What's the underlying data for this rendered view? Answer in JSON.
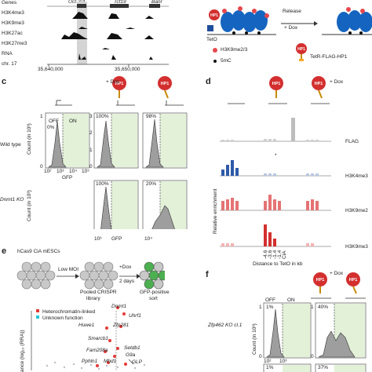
{
  "panel_a": {
    "track_labels": [
      "Genes",
      "H3K4me3",
      "H3K9me3",
      "H3K27ac",
      "H3K27me3",
      "RNA",
      "chr. 17"
    ],
    "gene_oct": "Oct-3/4",
    "gene_tcf": "Tcf19",
    "gene_partial": "Banr",
    "coord_left": "35,640,000",
    "coord_right": "35,650,000"
  },
  "panel_b": {
    "release": "Release",
    "dox": "+ Dox",
    "teto": "TetO",
    "legend_k9": "H3K9me2/3",
    "legend_5mc": "5mC",
    "legend_hp1_label": "TetR-FLAG-HP1",
    "hp1": "HP1"
  },
  "panel_c": {
    "letter": "c",
    "dox": "+ Dox",
    "hp1": "HP1",
    "row_labels": [
      "Wild type",
      "Dnmt1 KO"
    ],
    "ylabel": "Count (in 10³)",
    "xlabel": "GFP",
    "off": "OFF",
    "on": "ON",
    "percents_top": [
      "0%",
      "100%",
      "98%"
    ],
    "percents_bottom": [
      "100%",
      "20%"
    ],
    "yticks_a": [
      "1",
      "0"
    ],
    "yticks_b": [
      "3",
      "2",
      "1",
      "0"
    ],
    "xticks": [
      "10²",
      "10³",
      "10⁴",
      "10⁵"
    ]
  },
  "panel_d": {
    "letter": "d",
    "dox": "+ Dox",
    "hp1": "HP1",
    "ylabel": "Relative enrichment",
    "xlabel": "Distance to TetO in kb",
    "row_labels": [
      "FLAG",
      "H3K4me3",
      "H3K9me2",
      "H3K9me3"
    ],
    "xcats": [
      "-4.6",
      "-3.6",
      "-1.4",
      "-1.4",
      "CiA"
    ],
    "star": "*"
  },
  "panel_e": {
    "letter": "e",
    "title": "hCas9 CiA mESCs",
    "low_moi": "Low MOI",
    "dox": "+Dox",
    "two_days": "2 days",
    "lib1": "Pooled CRISPR",
    "lib2": "library",
    "sort1": "GFP-positive",
    "sort2": "sort",
    "legend1": "Heterochromatin-linked",
    "legend2": "Unknown function",
    "ylabel": "ance (log₁₀ (RRA))",
    "genes": [
      "Dnmt1",
      "Uhrf1",
      "Huwe1",
      "Zfp281",
      "Smarcb1",
      "Setdb1",
      "Fam208a",
      "G9a",
      "Pphln1",
      "Mbd1",
      "GLP"
    ]
  },
  "panel_f": {
    "letter": "f",
    "dox": "+ Dox",
    "hp1": "HP1",
    "row_label": "Zfp462 KO cl.1",
    "ylabel": "Count (in 10³)",
    "off": "OFF",
    "on": "ON",
    "percents": [
      "1%",
      "40%",
      "1%",
      "37%"
    ],
    "yticks": [
      "1",
      "0"
    ],
    "xticks": [
      "10²",
      "10³",
      "10⁴",
      "10⁵"
    ]
  }
}
